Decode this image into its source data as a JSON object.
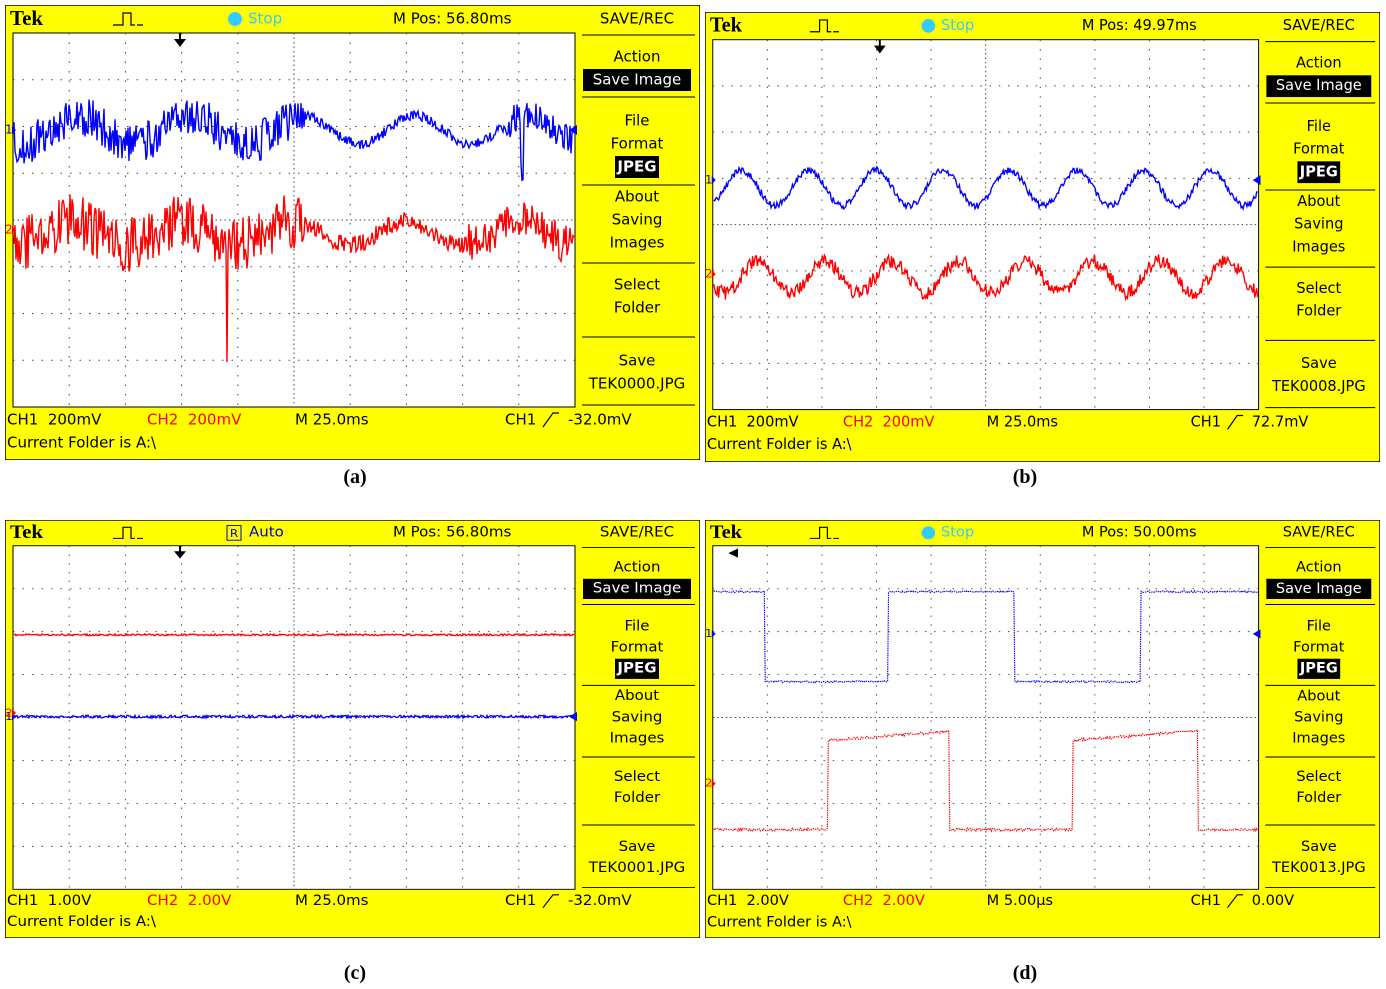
{
  "panels": [
    {
      "label": "(a)",
      "header": {
        "brand": "Tek",
        "trigger_state": "Stop",
        "position": "M Pos: 56.80ms"
      },
      "markers": [
        "1",
        "2"
      ],
      "menu": {
        "title": "SAVE/REC",
        "blocks": [
          {
            "lines": [
              "Action"
            ],
            "highlight": "Save Image"
          },
          {
            "lines": [
              "File",
              "Format"
            ],
            "highlight": "JPEG"
          },
          {
            "lines": [
              "About",
              "Saving",
              "Images"
            ]
          },
          {
            "lines": [
              "Select",
              "Folder"
            ]
          },
          {
            "lines": [
              "Save",
              "TEK0000.JPG"
            ]
          }
        ]
      },
      "status": {
        "ch1": "CH1  200mV",
        "ch2": "CH2  200mV",
        "timebase": "M 25.0ms",
        "trigger_source": "CH1",
        "trigger_level": "-32.0mV",
        "folder": "Current Folder is A:\\"
      }
    },
    {
      "label": "(b)",
      "header": {
        "brand": "Tek",
        "trigger_state": "Stop",
        "position": "M Pos: 49.97ms"
      },
      "markers": [
        "1",
        "2"
      ],
      "menu": {
        "title": "SAVE/REC",
        "blocks": [
          {
            "lines": [
              "Action"
            ],
            "highlight": "Save Image"
          },
          {
            "lines": [
              "File",
              "Format"
            ],
            "highlight": "JPEG"
          },
          {
            "lines": [
              "About",
              "Saving",
              "Images"
            ]
          },
          {
            "lines": [
              "Select",
              "Folder"
            ]
          },
          {
            "lines": [
              "Save",
              "TEK0008.JPG"
            ]
          }
        ]
      },
      "status": {
        "ch1": "CH1  200mV",
        "ch2": "CH2  200mV",
        "timebase": "M 25.0ms",
        "trigger_source": "CH1",
        "trigger_level": "72.7mV",
        "folder": "Current Folder is A:\\"
      }
    },
    {
      "label": "(c)",
      "header": {
        "brand": "Tek",
        "trigger_icon": "R",
        "trigger_state": "Auto",
        "position": "M Pos: 56.80ms"
      },
      "markers": [
        "1",
        "2"
      ],
      "menu": {
        "title": "SAVE/REC",
        "blocks": [
          {
            "lines": [
              "Action"
            ],
            "highlight": "Save Image"
          },
          {
            "lines": [
              "File",
              "Format"
            ],
            "highlight": "JPEG"
          },
          {
            "lines": [
              "About",
              "Saving",
              "Images"
            ]
          },
          {
            "lines": [
              "Select",
              "Folder"
            ]
          },
          {
            "lines": [
              "Save",
              "TEK0001.JPG"
            ]
          }
        ]
      },
      "status": {
        "ch1": "CH1  1.00V",
        "ch2": "CH2  2.00V",
        "timebase": "M 25.0ms",
        "trigger_source": "CH1",
        "trigger_level": "-32.0mV",
        "folder": "Current Folder is A:\\"
      }
    },
    {
      "label": "(d)",
      "header": {
        "brand": "Tek",
        "trigger_state": "Stop",
        "position": "M Pos: 50.00ms"
      },
      "markers": [
        "1",
        "2"
      ],
      "menu": {
        "title": "SAVE/REC",
        "blocks": [
          {
            "lines": [
              "Action"
            ],
            "highlight": "Save Image"
          },
          {
            "lines": [
              "File",
              "Format"
            ],
            "highlight": "JPEG"
          },
          {
            "lines": [
              "About",
              "Saving",
              "Images"
            ]
          },
          {
            "lines": [
              "Select",
              "Folder"
            ]
          },
          {
            "lines": [
              "Save",
              "TEK0013.JPG"
            ]
          }
        ]
      },
      "status": {
        "ch1": "CH1  2.00V",
        "ch2": "CH2  2.00V",
        "timebase": "M 5.00µs",
        "trigger_source": "CH1",
        "trigger_level": "0.00V",
        "folder": "Current Folder is A:\\"
      }
    }
  ]
}
